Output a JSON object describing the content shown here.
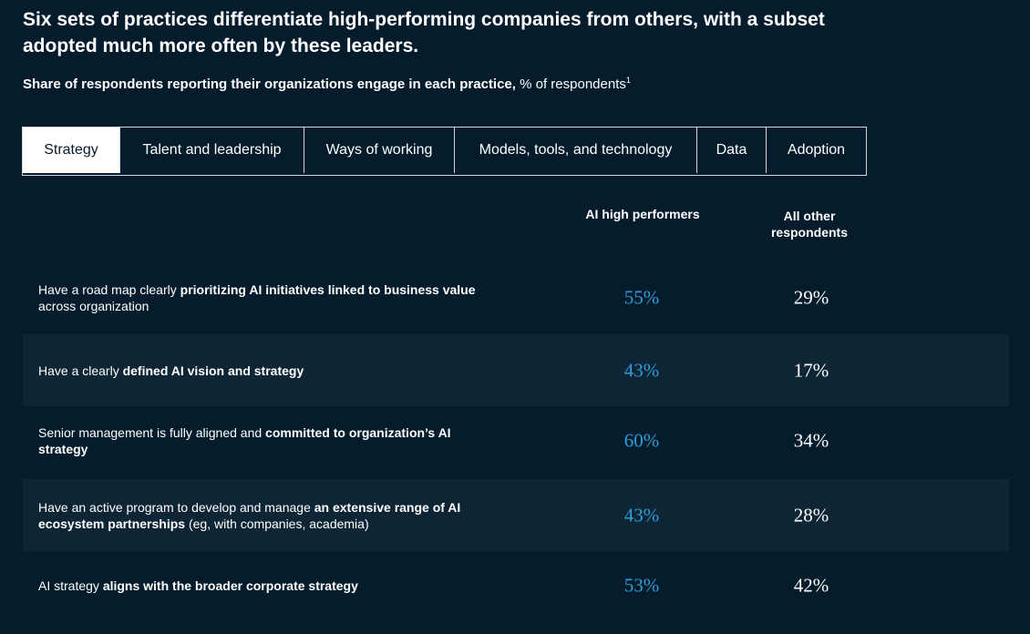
{
  "title": "Six sets of practices differentiate high-performing companies from others, with a subset adopted much more often by these leaders.",
  "subtitle": {
    "bold": "Share of respondents reporting their organizations engage in each practice,",
    "normal": " % of respondents",
    "footnote": "1"
  },
  "tabs": [
    {
      "label": "Strategy",
      "active": true
    },
    {
      "label": "Talent and leadership",
      "active": false
    },
    {
      "label": "Ways of working",
      "active": false
    },
    {
      "label": "Models, tools, and technology",
      "active": false
    },
    {
      "label": "Data",
      "active": false
    },
    {
      "label": "Adoption",
      "active": false
    }
  ],
  "columns": {
    "high_performers": "AI high performers",
    "others": "All other respondents"
  },
  "colors": {
    "background": "#051c2c",
    "alt_row": "#0d2535",
    "accent": "#2f9cd8"
  },
  "rows": [
    {
      "parts": [
        {
          "t": "Have a road map clearly ",
          "b": false
        },
        {
          "t": "prioritizing AI initiatives linked to business value",
          "b": true
        },
        {
          "t": " across organization",
          "b": false
        }
      ],
      "high": "55%",
      "other": "29%"
    },
    {
      "parts": [
        {
          "t": "Have a clearly ",
          "b": false
        },
        {
          "t": "defined AI vision and strategy",
          "b": true
        }
      ],
      "high": "43%",
      "other": "17%"
    },
    {
      "parts": [
        {
          "t": "Senior management is fully aligned and ",
          "b": false
        },
        {
          "t": "committed to organization’s AI strategy",
          "b": true
        }
      ],
      "high": "60%",
      "other": "34%"
    },
    {
      "parts": [
        {
          "t": "Have an active program to develop and manage ",
          "b": false
        },
        {
          "t": "an extensive range of AI ecosystem partnerships",
          "b": true
        },
        {
          "t": " (eg, with companies, academia)",
          "b": false
        }
      ],
      "high": "43%",
      "other": "28%"
    },
    {
      "parts": [
        {
          "t": "AI strategy ",
          "b": false
        },
        {
          "t": "aligns with the broader corporate strategy",
          "b": true
        }
      ],
      "high": "53%",
      "other": "42%"
    }
  ]
}
